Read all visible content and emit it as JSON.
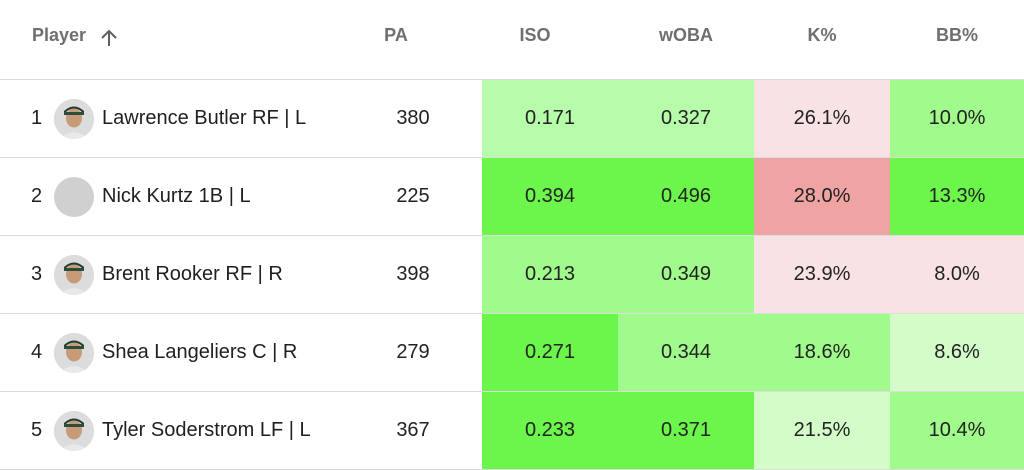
{
  "columns": [
    {
      "key": "player",
      "label": "Player"
    },
    {
      "key": "pa",
      "label": "PA"
    },
    {
      "key": "iso",
      "label": "ISO"
    },
    {
      "key": "woba",
      "label": "wOBA"
    },
    {
      "key": "k_pct",
      "label": "K%"
    },
    {
      "key": "bb_pct",
      "label": "BB%"
    }
  ],
  "sort": {
    "column": "player",
    "direction": "ascending",
    "icon": "arrow-up-icon"
  },
  "rows": [
    {
      "rank": "1",
      "name": "Lawrence Butler RF | L",
      "avatar": "player-photo",
      "pa": "380",
      "iso": "0.171",
      "woba": "0.327",
      "k_pct": "26.1%",
      "bb_pct": "10.0%",
      "colors": {
        "iso": "#b6fcaa",
        "woba": "#b6fcaa",
        "k_pct": "#f8e2e3",
        "bb_pct": "#a0fa8c"
      }
    },
    {
      "rank": "2",
      "name": "Nick Kurtz 1B | L",
      "avatar": "placeholder",
      "pa": "225",
      "iso": "0.394",
      "woba": "0.496",
      "k_pct": "28.0%",
      "bb_pct": "13.3%",
      "colors": {
        "iso": "#6cf54a",
        "woba": "#6cf54a",
        "k_pct": "#f0a3a3",
        "bb_pct": "#6cf54a"
      }
    },
    {
      "rank": "3",
      "name": "Brent Rooker RF | R",
      "avatar": "player-photo",
      "pa": "398",
      "iso": "0.213",
      "woba": "0.349",
      "k_pct": "23.9%",
      "bb_pct": "8.0%",
      "colors": {
        "iso": "#a0fa8c",
        "woba": "#a0fa8c",
        "k_pct": "#f8e2e3",
        "bb_pct": "#f8e2e3"
      }
    },
    {
      "rank": "4",
      "name": "Shea Langeliers C | R",
      "avatar": "player-photo",
      "pa": "279",
      "iso": "0.271",
      "woba": "0.344",
      "k_pct": "18.6%",
      "bb_pct": "8.6%",
      "colors": {
        "iso": "#6cf54a",
        "woba": "#a0fa8c",
        "k_pct": "#a0fa8c",
        "bb_pct": "#d4fcc9"
      }
    },
    {
      "rank": "5",
      "name": "Tyler Soderstrom LF | L",
      "avatar": "player-photo",
      "pa": "367",
      "iso": "0.233",
      "woba": "0.371",
      "k_pct": "21.5%",
      "bb_pct": "10.4%",
      "colors": {
        "iso": "#6cf54a",
        "woba": "#6cf54a",
        "k_pct": "#d4fcc9",
        "bb_pct": "#a0fa8c"
      }
    }
  ]
}
